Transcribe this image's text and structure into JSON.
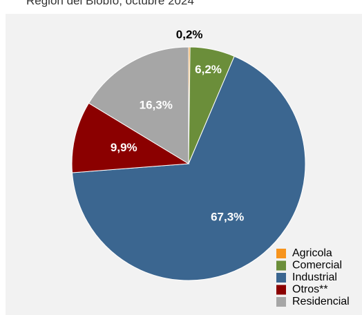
{
  "chart_data": {
    "type": "pie",
    "subtitle": "Región del Biobío, octubre 2024",
    "categories": [
      "Agricola",
      "Comercial",
      "Industrial",
      "Otros**",
      "Residencial"
    ],
    "values": [
      0.2,
      6.2,
      67.3,
      9.9,
      16.3
    ],
    "value_labels": [
      "0,2%",
      "6,2%",
      "67,3%",
      "9,9%",
      "16,3%"
    ],
    "colors": [
      "#f7941d",
      "#6b8e3a",
      "#3b6690",
      "#8b0000",
      "#a6a6a6"
    ],
    "legend": "bottom-right"
  }
}
